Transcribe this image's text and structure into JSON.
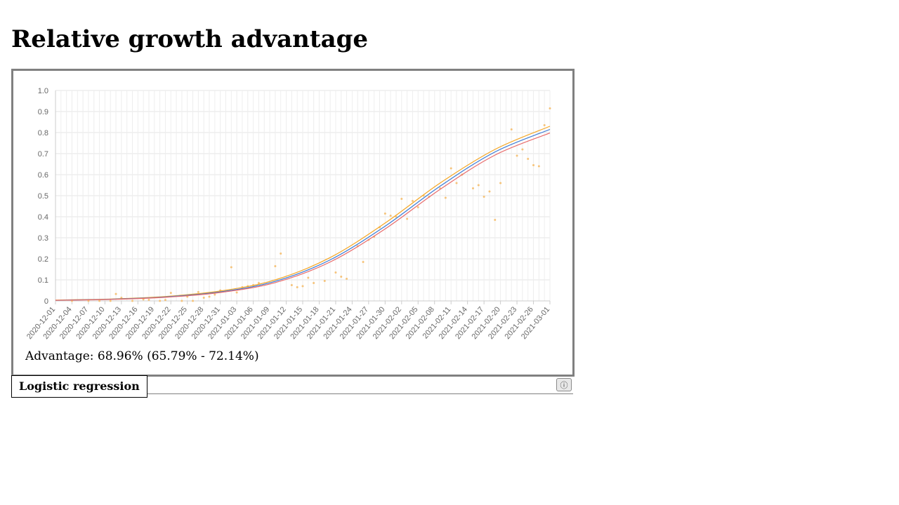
{
  "page": {
    "title": "Relative growth advantage"
  },
  "summary": {
    "advantage_text": "Advantage: 68.96% (65.79% - 72.14%)"
  },
  "tabs": {
    "active_label": "Logistic regression",
    "info_icon": "info-icon",
    "info_glyph": "ⓘ"
  },
  "chart_data": {
    "type": "line",
    "title": "",
    "xlabel": "",
    "ylabel": "",
    "ylim": [
      0,
      1
    ],
    "yticks": [
      "0",
      "0.1",
      "0.2",
      "0.3",
      "0.4",
      "0.5",
      "0.6",
      "0.7",
      "0.8",
      "0.9",
      "1.0"
    ],
    "x_range": [
      "2020-12-01",
      "2021-03-01"
    ],
    "xticks": [
      "2020-12-01",
      "2020-12-04",
      "2020-12-07",
      "2020-12-10",
      "2020-12-13",
      "2020-12-16",
      "2020-12-19",
      "2020-12-22",
      "2020-12-25",
      "2020-12-28",
      "2020-12-31",
      "2021-01-03",
      "2021-01-06",
      "2021-01-09",
      "2021-01-12",
      "2021-01-15",
      "2021-01-18",
      "2021-01-21",
      "2021-01-24",
      "2021-01-27",
      "2021-01-30",
      "2021-02-02",
      "2021-02-05",
      "2021-02-08",
      "2021-02-11",
      "2021-02-14",
      "2021-02-17",
      "2021-02-20",
      "2021-02-23",
      "2021-02-26",
      "2021-03-01"
    ],
    "grid": true,
    "legend": "none",
    "series": [
      {
        "color": "#f5a623",
        "dates": [
          "2020-12-01",
          "2020-12-11",
          "2020-12-21",
          "2020-12-31",
          "2021-01-10",
          "2021-01-20",
          "2021-01-30",
          "2021-02-09",
          "2021-02-19",
          "2021-03-01"
        ],
        "values": [
          0.004,
          0.009,
          0.021,
          0.047,
          0.1,
          0.206,
          0.37,
          0.56,
          0.72,
          0.83
        ]
      },
      {
        "color": "#3a7bd5",
        "dates": [
          "2020-12-01",
          "2020-12-11",
          "2020-12-21",
          "2020-12-31",
          "2021-01-10",
          "2021-01-20",
          "2021-01-30",
          "2021-02-09",
          "2021-02-19",
          "2021-03-01"
        ],
        "values": [
          0.003,
          0.008,
          0.019,
          0.043,
          0.093,
          0.195,
          0.355,
          0.545,
          0.708,
          0.815
        ]
      },
      {
        "color": "#e86b6b",
        "dates": [
          "2020-12-01",
          "2020-12-11",
          "2020-12-21",
          "2020-12-31",
          "2021-01-10",
          "2021-01-20",
          "2021-01-30",
          "2021-02-09",
          "2021-02-19",
          "2021-03-01"
        ],
        "values": [
          0.003,
          0.007,
          0.017,
          0.04,
          0.087,
          0.185,
          0.342,
          0.53,
          0.693,
          0.798
        ]
      }
    ],
    "scatter": {
      "color": "#f5c37a",
      "points": [
        [
          "2020-12-04",
          0.0
        ],
        [
          "2020-12-07",
          0.0
        ],
        [
          "2020-12-09",
          0.0
        ],
        [
          "2020-12-11",
          0.0
        ],
        [
          "2020-12-12",
          0.033
        ],
        [
          "2020-12-13",
          0.015
        ],
        [
          "2020-12-15",
          0.0
        ],
        [
          "2020-12-17",
          0.007
        ],
        [
          "2020-12-18",
          0.005
        ],
        [
          "2020-12-20",
          0.0
        ],
        [
          "2020-12-21",
          0.004
        ],
        [
          "2020-12-22",
          0.038
        ],
        [
          "2020-12-24",
          0.0
        ],
        [
          "2020-12-25",
          0.02
        ],
        [
          "2020-12-26",
          0.0
        ],
        [
          "2020-12-27",
          0.042
        ],
        [
          "2020-12-28",
          0.015
        ],
        [
          "2020-12-29",
          0.02
        ],
        [
          "2020-12-30",
          0.03
        ],
        [
          "2020-12-31",
          0.05
        ],
        [
          "2021-01-02",
          0.16
        ],
        [
          "2021-01-03",
          0.04
        ],
        [
          "2021-01-04",
          0.065
        ],
        [
          "2021-01-05",
          0.07
        ],
        [
          "2021-01-06",
          0.075
        ],
        [
          "2021-01-07",
          0.085
        ],
        [
          "2021-01-10",
          0.165
        ],
        [
          "2021-01-11",
          0.225
        ],
        [
          "2021-01-13",
          0.075
        ],
        [
          "2021-01-14",
          0.065
        ],
        [
          "2021-01-15",
          0.07
        ],
        [
          "2021-01-16",
          0.11
        ],
        [
          "2021-01-17",
          0.085
        ],
        [
          "2021-01-19",
          0.095
        ],
        [
          "2021-01-21",
          0.135
        ],
        [
          "2021-01-22",
          0.115
        ],
        [
          "2021-01-23",
          0.105
        ],
        [
          "2021-01-25",
          0.26
        ],
        [
          "2021-01-26",
          0.185
        ],
        [
          "2021-01-27",
          0.29
        ],
        [
          "2021-01-28",
          0.305
        ],
        [
          "2021-01-29",
          0.35
        ],
        [
          "2021-01-30",
          0.415
        ],
        [
          "2021-01-31",
          0.405
        ],
        [
          "2021-02-01",
          0.4
        ],
        [
          "2021-02-02",
          0.485
        ],
        [
          "2021-02-03",
          0.39
        ],
        [
          "2021-02-04",
          0.475
        ],
        [
          "2021-02-05",
          0.445
        ],
        [
          "2021-02-06",
          0.5
        ],
        [
          "2021-02-07",
          0.495
        ],
        [
          "2021-02-09",
          0.535
        ],
        [
          "2021-02-10",
          0.49
        ],
        [
          "2021-02-11",
          0.63
        ],
        [
          "2021-02-12",
          0.56
        ],
        [
          "2021-02-13",
          0.6
        ],
        [
          "2021-02-15",
          0.535
        ],
        [
          "2021-02-16",
          0.55
        ],
        [
          "2021-02-17",
          0.495
        ],
        [
          "2021-02-18",
          0.52
        ],
        [
          "2021-02-19",
          0.385
        ],
        [
          "2021-02-20",
          0.56
        ],
        [
          "2021-02-22",
          0.815
        ],
        [
          "2021-02-23",
          0.69
        ],
        [
          "2021-02-24",
          0.72
        ],
        [
          "2021-02-25",
          0.675
        ],
        [
          "2021-02-26",
          0.645
        ],
        [
          "2021-02-27",
          0.64
        ],
        [
          "2021-02-28",
          0.835
        ],
        [
          "2021-03-01",
          0.915
        ],
        [
          "2021-03-02",
          0.775
        ]
      ]
    }
  }
}
